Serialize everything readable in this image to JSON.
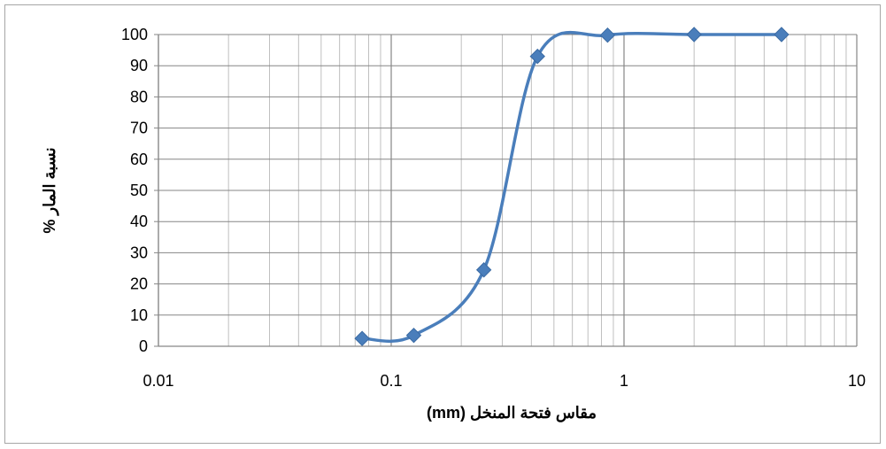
{
  "chart_data": {
    "type": "line",
    "x_scale": "log",
    "xlim": [
      0.01,
      10
    ],
    "ylim": [
      0,
      100
    ],
    "x_ticks": [
      "0.01",
      "0.1",
      "1",
      "10"
    ],
    "y_ticks": [
      "0",
      "10",
      "20",
      "30",
      "40",
      "50",
      "60",
      "70",
      "80",
      "90",
      "100"
    ],
    "xlabel": "مقاس فتحة المنخل (mm)",
    "ylabel": "نسبة المار %",
    "grid": true,
    "series": [
      {
        "color": "#4a7ebb",
        "marker": "diamond",
        "smooth": true,
        "x": [
          0.075,
          0.125,
          0.25,
          0.425,
          0.85,
          2,
          4.75
        ],
        "y": [
          2.5,
          3.5,
          24.5,
          93,
          99.8,
          100,
          100
        ]
      }
    ]
  }
}
